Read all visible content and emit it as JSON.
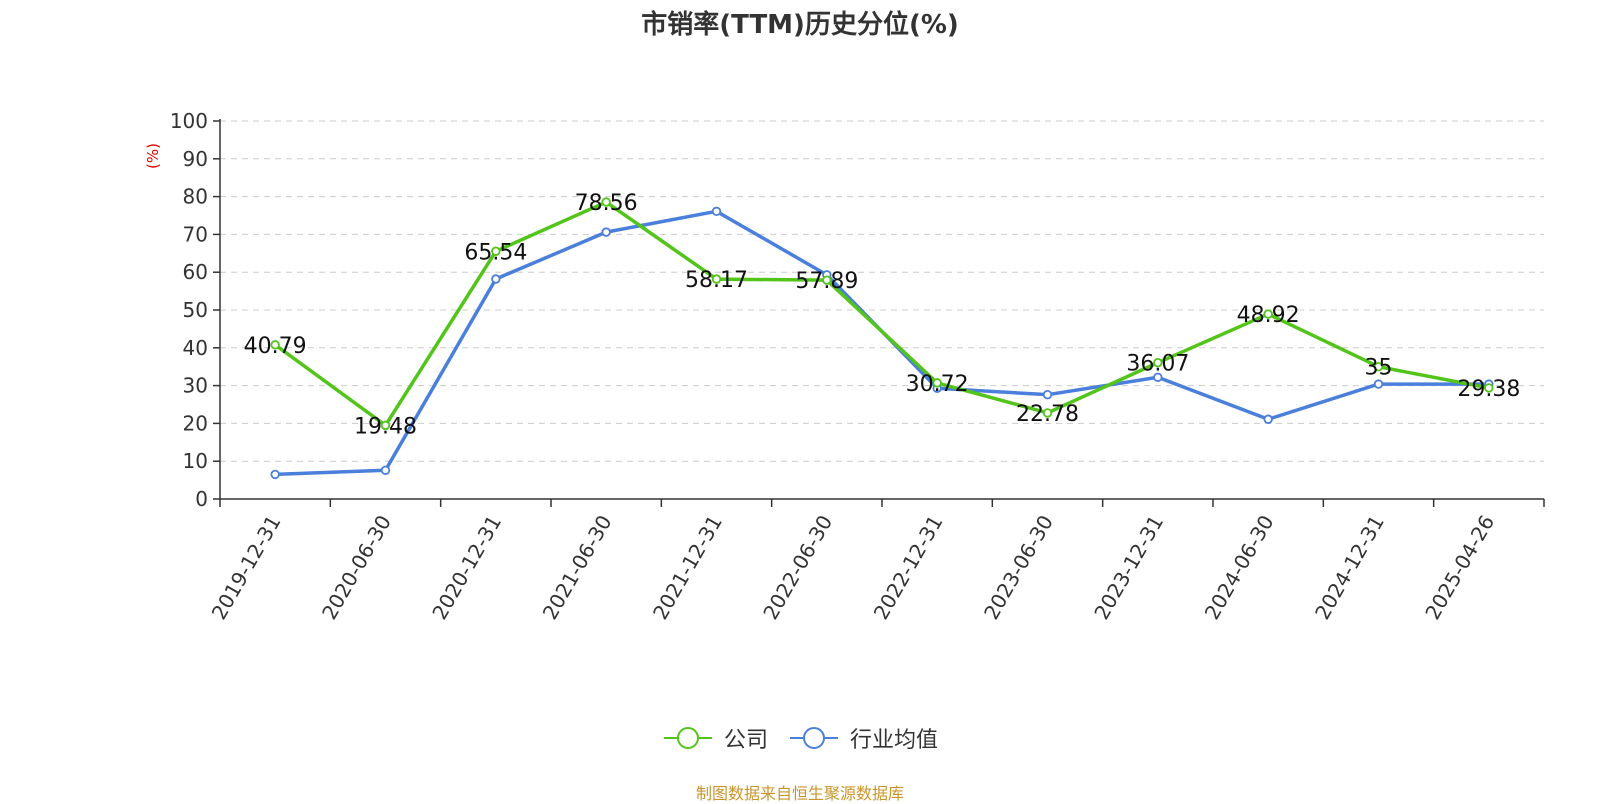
{
  "chart_data": {
    "type": "line",
    "title": "市销率(TTM)历史分位(%)",
    "ylabel": "(%)",
    "ylim": [
      0,
      100
    ],
    "yticks": [
      0,
      10,
      20,
      30,
      40,
      50,
      60,
      70,
      80,
      90,
      100
    ],
    "categories": [
      "2019-12-31",
      "2020-06-30",
      "2020-12-31",
      "2021-06-30",
      "2021-12-31",
      "2022-06-30",
      "2022-12-31",
      "2023-06-30",
      "2023-12-31",
      "2024-06-30",
      "2024-12-31",
      "2025-04-26"
    ],
    "grid": true,
    "legend_position": "bottom-center",
    "series": [
      {
        "name": "公司",
        "color": "#52c41a",
        "values": [
          40.79,
          19.48,
          65.54,
          78.56,
          58.17,
          57.89,
          30.72,
          22.78,
          36.07,
          48.92,
          35,
          29.38
        ],
        "labels": [
          "40.79",
          "19.48",
          "65.54",
          "78.56",
          "58.17",
          "57.89",
          "30.72",
          "22.78",
          "36.07",
          "48.92",
          "35",
          "29.38"
        ]
      },
      {
        "name": "行业均值",
        "color": "#4a7fdb",
        "values": [
          6.5,
          7.6,
          58.2,
          70.6,
          76.1,
          59.3,
          29.3,
          27.6,
          32.2,
          21.1,
          30.4,
          30.4
        ]
      }
    ],
    "source": "制图数据来自恒生聚源数据库"
  }
}
